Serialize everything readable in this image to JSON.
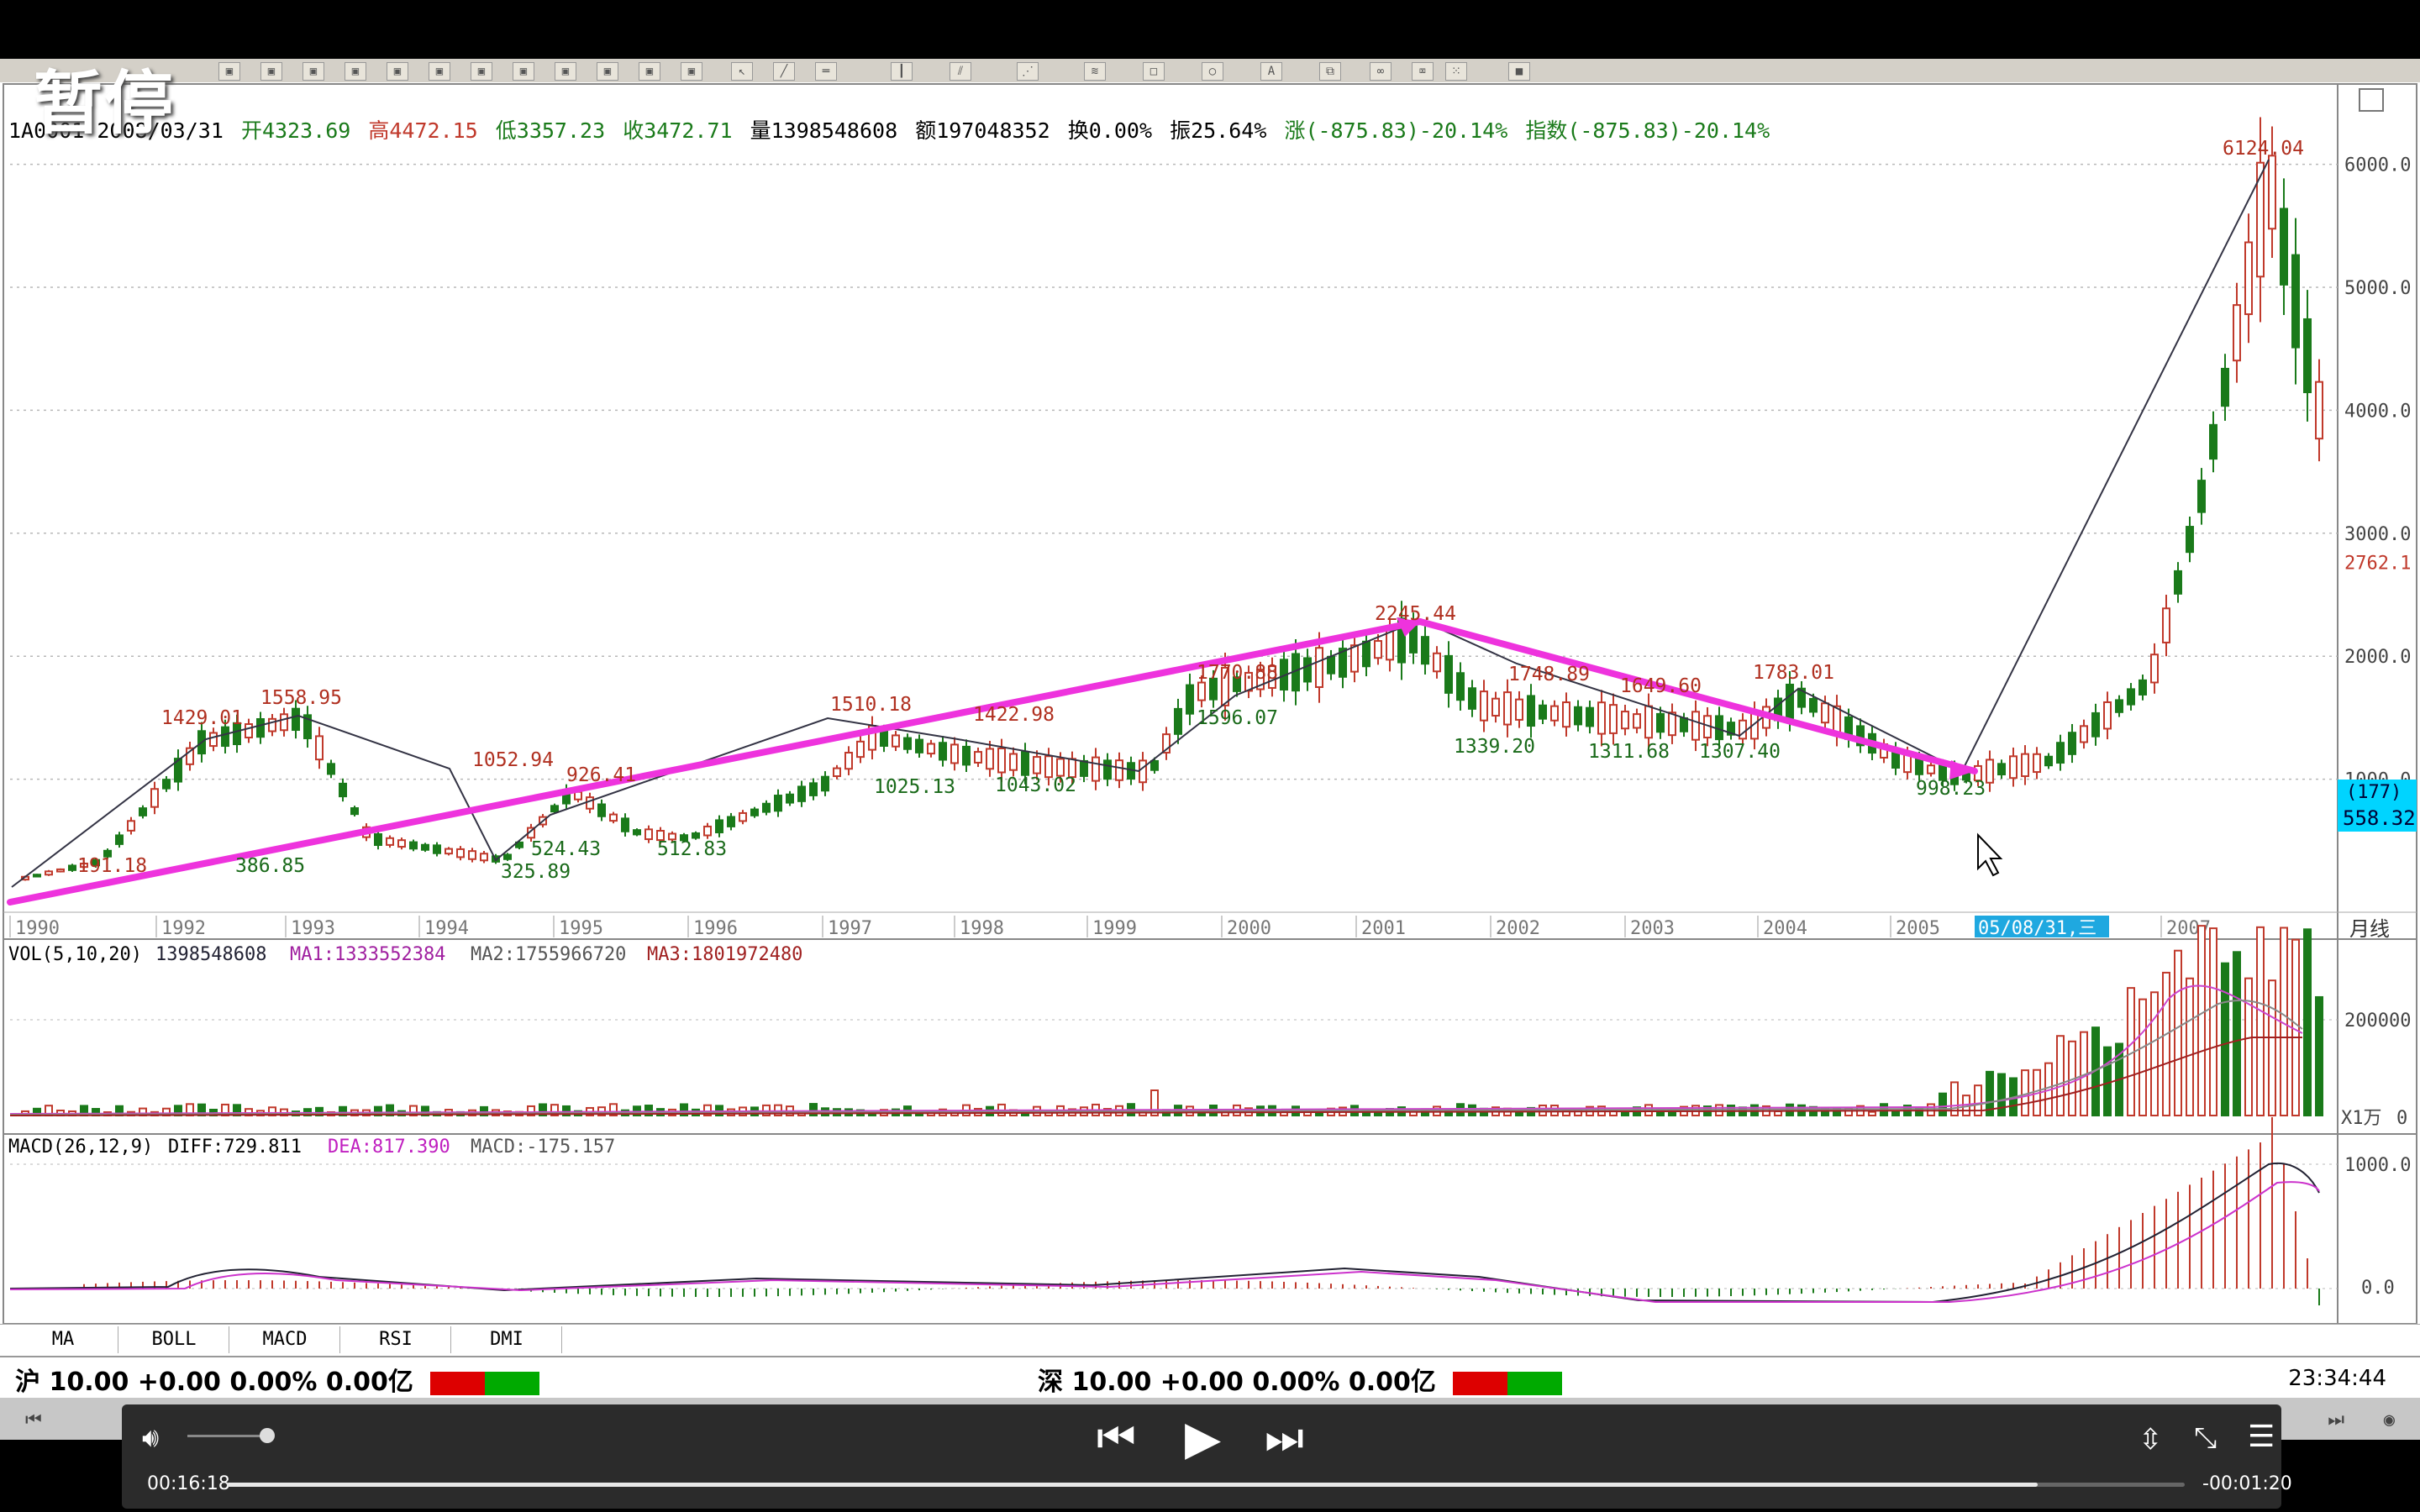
{
  "overlay": {
    "pause_label": "暂停"
  },
  "toolbar": {
    "icons": [
      "zoom-icon",
      "draw-line-icon",
      "bar-icon",
      "text-tool-icon",
      "settings-icon"
    ]
  },
  "chart": {
    "code_line": "1A0001 2008/03/31",
    "open": "开4323.69",
    "high": "高4472.15",
    "low": "低3357.23",
    "close": "收3472.71",
    "volume": "量1398548608",
    "amount": "额197048352",
    "turnover": "换0.00%",
    "amplitude": "振25.64%",
    "change": "涨(-875.83)-20.14%",
    "index": "指数(-875.83)-20.14%",
    "price_axis": [
      "6000.0",
      "5000.0",
      "4000.0",
      "3000.0",
      "2000.0",
      "1000.0"
    ],
    "current_price": "2762.1",
    "cursor_box": [
      "(177)",
      "558.32"
    ],
    "years": [
      "1990",
      "1992",
      "1993",
      "1994",
      "1995",
      "1996",
      "1997",
      "1998",
      "1999",
      "2000",
      "2001",
      "2002",
      "2003",
      "2004",
      "2005",
      "2007"
    ],
    "date_cursor": "05/08/31,三",
    "period_label": "月线",
    "peak_labels": [
      {
        "t": "191.18",
        "c": "red"
      },
      {
        "t": "1429.01",
        "c": "red"
      },
      {
        "t": "1558.95",
        "c": "red"
      },
      {
        "t": "386.85",
        "c": "green"
      },
      {
        "t": "1052.94",
        "c": "red"
      },
      {
        "t": "325.89",
        "c": "green"
      },
      {
        "t": "524.43",
        "c": "green"
      },
      {
        "t": "926.41",
        "c": "red"
      },
      {
        "t": "512.83",
        "c": "green"
      },
      {
        "t": "1510.18",
        "c": "red"
      },
      {
        "t": "1025.13",
        "c": "green"
      },
      {
        "t": "1422.98",
        "c": "red"
      },
      {
        "t": "1043.02",
        "c": "green"
      },
      {
        "t": "1770.88",
        "c": "red"
      },
      {
        "t": "1596.07",
        "c": "green"
      },
      {
        "t": "2245.44",
        "c": "red"
      },
      {
        "t": "1339.20",
        "c": "green"
      },
      {
        "t": "1748.89",
        "c": "red"
      },
      {
        "t": "1311.68",
        "c": "green"
      },
      {
        "t": "1649.60",
        "c": "red"
      },
      {
        "t": "1307.40",
        "c": "green"
      },
      {
        "t": "1783.01",
        "c": "red"
      },
      {
        "t": "998.23",
        "c": "green"
      },
      {
        "t": "6124.04",
        "c": "red"
      }
    ]
  },
  "volume_panel": {
    "label": "VOL(5,10,20)",
    "value": "1398548608",
    "ma1": "MA1:1333552384",
    "ma2": "MA2:1755966720",
    "ma3": "MA3:1801972480",
    "axis": [
      "200000",
      "X1万",
      "0"
    ]
  },
  "macd_panel": {
    "label": "MACD(26,12,9)",
    "diff": "DIFF:729.811",
    "dea": "DEA:817.390",
    "macd": "MACD:-175.157",
    "axis": [
      "1000.0",
      "0.0"
    ]
  },
  "tabs": [
    "MA",
    "BOLL",
    "MACD",
    "RSI",
    "DMI"
  ],
  "status": {
    "sh": "沪 10.00 +0.00 0.00% 0.00亿",
    "sz": "深 10.00 +0.00 0.00% 0.00亿",
    "clock": "23:34:44"
  },
  "player": {
    "elapsed": "00:16:18",
    "remaining": "-00:01:20",
    "progress": 0.925,
    "volume_level": 0.9
  },
  "colors": {
    "up": "#c0392b",
    "down": "#1a7a1a",
    "trend": "#ee33dd",
    "grid": "#b8b8b8"
  }
}
